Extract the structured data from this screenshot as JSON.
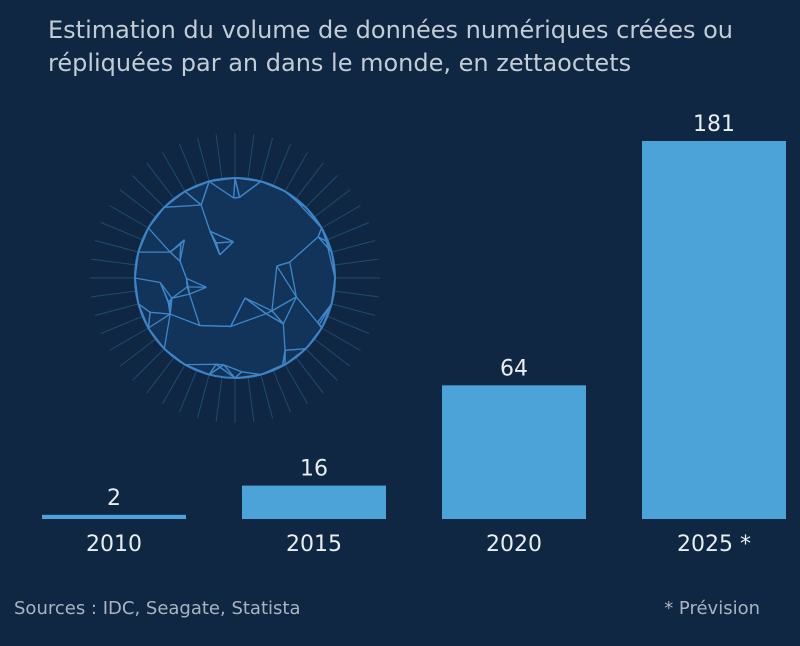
{
  "chart_data": {
    "type": "bar",
    "title": "Estimation du volume de données numériques créées ou répliquées par an dans le monde, en zettaoctets",
    "categories": [
      "2010",
      "2015",
      "2020",
      "2025 *"
    ],
    "values": [
      2,
      16,
      64,
      181
    ],
    "ylim": [
      0,
      181
    ],
    "grid": false,
    "bar_color": "#4ba3d8",
    "background": "#0f2742"
  },
  "footer": {
    "sources": "Sources : IDC, Seagate, Statista",
    "note": "* Prévision"
  },
  "decoration": {
    "icon": "globe-network-icon"
  }
}
